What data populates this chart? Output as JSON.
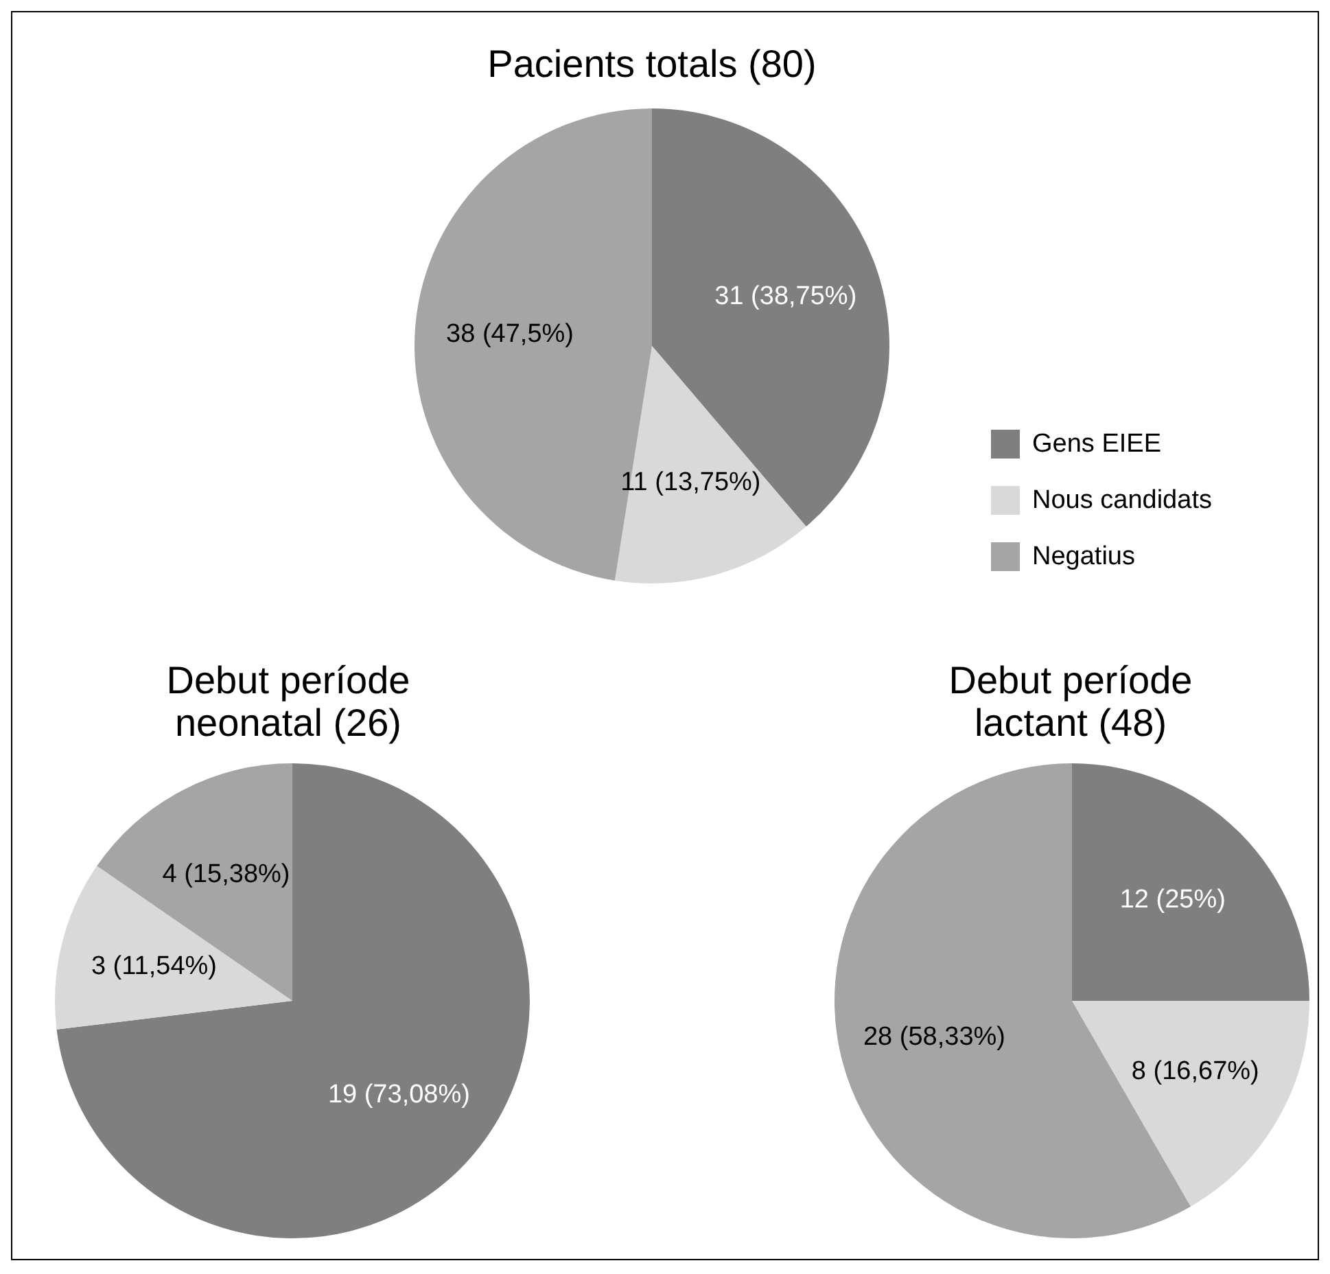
{
  "chart_data": [
    {
      "type": "pie",
      "title": "Pacients totals (80)",
      "categories": [
        "Gens EIEE",
        "Nous candidats",
        "Negatius"
      ],
      "values": [
        31,
        11,
        38
      ],
      "colors": [
        "#7f7f7f",
        "#d9d9d9",
        "#a5a5a5"
      ],
      "value_labels": [
        "31 (38,75%)",
        "11 (13,75%)",
        "38 (47,5%)"
      ],
      "legend": "right"
    },
    {
      "type": "pie",
      "title": "Debut període neonatal (26)",
      "categories": [
        null,
        null,
        null
      ],
      "values": [
        19,
        3,
        4
      ],
      "colors": [
        "#7f7f7f",
        "#d9d9d9",
        "#a5a5a5"
      ],
      "value_labels": [
        "19 (73,08%)",
        "3 (11,54%)",
        "4 (15,38%)"
      ]
    },
    {
      "type": "pie",
      "title": "Debut període lactant (48)",
      "categories": [
        null,
        null,
        null
      ],
      "values": [
        12,
        8,
        28
      ],
      "colors": [
        "#7f7f7f",
        "#d9d9d9",
        "#a5a5a5"
      ],
      "value_labels": [
        "12 (25%)",
        "8 (16,67%)",
        "28 (58,33%)"
      ]
    }
  ]
}
